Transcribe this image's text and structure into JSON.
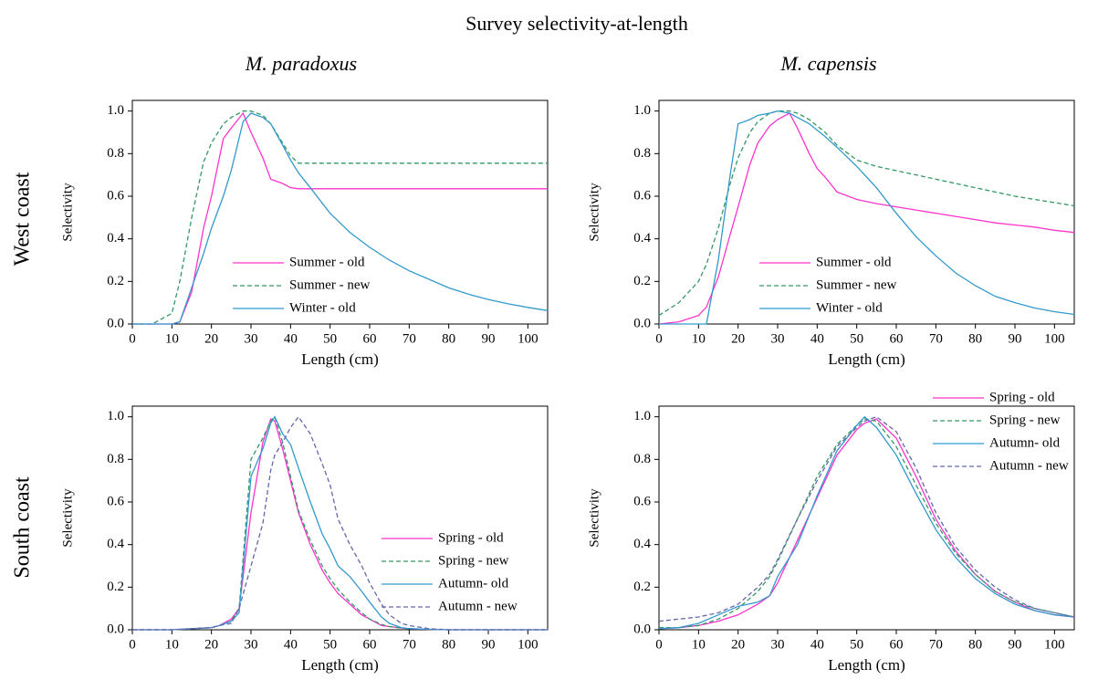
{
  "title": "Survey selectivity-at-length",
  "column_titles": [
    "M. paradoxus",
    "M. capensis"
  ],
  "row_titles": [
    "West coast",
    "South coast"
  ],
  "chart_data": [
    {
      "type": "line",
      "xlabel": "Length (cm)",
      "ylabel": "Selectivity",
      "legend": "lower center",
      "xlim": [
        0,
        105
      ],
      "ylim": [
        0,
        1.05
      ],
      "xticks": [
        0,
        10,
        20,
        30,
        40,
        50,
        60,
        70,
        80,
        90,
        100
      ],
      "yticks": [
        {
          "value": 0,
          "label": "0.0"
        },
        0.2,
        0.4,
        0.6,
        0.8,
        {
          "value": 1,
          "label": "1.0"
        }
      ],
      "x": [
        0,
        5,
        10,
        12,
        15,
        18,
        20,
        23,
        25,
        28,
        30,
        33,
        35,
        38,
        40,
        42,
        45,
        50,
        55,
        60,
        65,
        70,
        75,
        80,
        85,
        90,
        95,
        100,
        105
      ],
      "series": [
        {
          "name": "Summer - old",
          "color": "#ff33cc",
          "style": "solid",
          "values": [
            0,
            0,
            0,
            0.01,
            0.15,
            0.45,
            0.6,
            0.87,
            0.92,
            0.99,
            0.9,
            0.78,
            0.68,
            0.66,
            0.64,
            0.635,
            0.635,
            0.635,
            0.635,
            0.635,
            0.635,
            0.635,
            0.635,
            0.635,
            0.635,
            0.635,
            0.635,
            0.635,
            0.635
          ]
        },
        {
          "name": "Summer - new",
          "color": "#339966",
          "style": "dashed",
          "values": [
            0,
            0,
            0.05,
            0.2,
            0.5,
            0.76,
            0.85,
            0.94,
            0.97,
            1.0,
            1.0,
            0.98,
            0.94,
            0.85,
            0.79,
            0.755,
            0.755,
            0.755,
            0.755,
            0.755,
            0.755,
            0.755,
            0.755,
            0.755,
            0.755,
            0.755,
            0.755,
            0.755,
            0.755
          ]
        },
        {
          "name": "Winter - old",
          "color": "#3399cc",
          "style": "solid",
          "values": [
            0,
            0,
            0,
            0.01,
            0.17,
            0.33,
            0.45,
            0.6,
            0.72,
            0.95,
            0.99,
            0.97,
            0.94,
            0.84,
            0.77,
            0.71,
            0.64,
            0.52,
            0.43,
            0.36,
            0.3,
            0.25,
            0.21,
            0.17,
            0.14,
            0.115,
            0.095,
            0.078,
            0.063
          ]
        }
      ]
    },
    {
      "type": "line",
      "xlabel": "Length (cm)",
      "ylabel": "Selectivity",
      "legend": "lower center",
      "xlim": [
        0,
        105
      ],
      "ylim": [
        0,
        1.05
      ],
      "xticks": [
        0,
        10,
        20,
        30,
        40,
        50,
        60,
        70,
        80,
        90,
        100
      ],
      "yticks": [
        {
          "value": 0,
          "label": "0.0"
        },
        0.2,
        0.4,
        0.6,
        0.8,
        {
          "value": 1,
          "label": "1.0"
        }
      ],
      "x": [
        0,
        5,
        10,
        12,
        15,
        18,
        20,
        23,
        25,
        28,
        30,
        33,
        35,
        38,
        40,
        42,
        45,
        50,
        55,
        60,
        65,
        70,
        75,
        80,
        85,
        90,
        95,
        100,
        105
      ],
      "series": [
        {
          "name": "Summer - old",
          "color": "#ff33cc",
          "style": "solid",
          "values": [
            0,
            0.01,
            0.04,
            0.08,
            0.22,
            0.42,
            0.55,
            0.75,
            0.85,
            0.93,
            0.96,
            0.99,
            0.92,
            0.8,
            0.73,
            0.69,
            0.62,
            0.585,
            0.565,
            0.55,
            0.535,
            0.52,
            0.505,
            0.49,
            0.475,
            0.465,
            0.455,
            0.44,
            0.43
          ]
        },
        {
          "name": "Summer - new",
          "color": "#339966",
          "style": "dashed",
          "values": [
            0.04,
            0.1,
            0.2,
            0.28,
            0.45,
            0.66,
            0.78,
            0.9,
            0.95,
            0.99,
            1.0,
            1.0,
            0.99,
            0.96,
            0.93,
            0.9,
            0.84,
            0.77,
            0.74,
            0.72,
            0.7,
            0.68,
            0.66,
            0.64,
            0.62,
            0.6,
            0.585,
            0.57,
            0.555
          ]
        },
        {
          "name": "Winter - old",
          "color": "#3399cc",
          "style": "solid",
          "values": [
            0,
            0,
            0,
            0,
            0.3,
            0.7,
            0.94,
            0.96,
            0.98,
            0.99,
            1.0,
            0.99,
            0.97,
            0.94,
            0.91,
            0.88,
            0.83,
            0.74,
            0.64,
            0.52,
            0.41,
            0.32,
            0.24,
            0.18,
            0.13,
            0.1,
            0.075,
            0.058,
            0.045
          ]
        }
      ]
    },
    {
      "type": "line",
      "xlabel": "Length (cm)",
      "ylabel": "Selectivity",
      "legend": "center right",
      "xlim": [
        0,
        105
      ],
      "ylim": [
        0,
        1.05
      ],
      "xticks": [
        0,
        10,
        20,
        30,
        40,
        50,
        60,
        70,
        80,
        90,
        100
      ],
      "yticks": [
        {
          "value": 0,
          "label": "0.0"
        },
        0.2,
        0.4,
        0.6,
        0.8,
        {
          "value": 1,
          "label": "1.0"
        }
      ],
      "x": [
        0,
        5,
        10,
        15,
        20,
        22,
        25,
        27,
        30,
        33,
        35,
        36,
        38,
        40,
        42,
        45,
        48,
        50,
        52,
        55,
        58,
        60,
        63,
        65,
        68,
        70,
        75,
        80,
        90,
        100,
        105
      ],
      "series": [
        {
          "name": "Spring - old",
          "color": "#ff33cc",
          "style": "solid",
          "values": [
            0,
            0,
            0,
            0.005,
            0.01,
            0.02,
            0.05,
            0.1,
            0.55,
            0.88,
            0.99,
            0.98,
            0.85,
            0.7,
            0.55,
            0.4,
            0.28,
            0.22,
            0.17,
            0.12,
            0.07,
            0.05,
            0.02,
            0.015,
            0.008,
            0.005,
            0.002,
            0,
            0,
            0,
            0
          ]
        },
        {
          "name": "Spring - new",
          "color": "#339966",
          "style": "dashed",
          "values": [
            0,
            0,
            0,
            0.005,
            0.01,
            0.02,
            0.04,
            0.1,
            0.8,
            0.9,
            0.98,
            1.0,
            0.88,
            0.72,
            0.56,
            0.42,
            0.3,
            0.24,
            0.19,
            0.13,
            0.08,
            0.05,
            0.025,
            0.015,
            0.008,
            0.005,
            0.002,
            0,
            0,
            0,
            0
          ]
        },
        {
          "name": "Autumn- old",
          "color": "#3399cc",
          "style": "solid",
          "values": [
            0,
            0,
            0,
            0.005,
            0.01,
            0.02,
            0.04,
            0.08,
            0.72,
            0.85,
            0.97,
            1.0,
            0.92,
            0.87,
            0.76,
            0.6,
            0.45,
            0.38,
            0.3,
            0.25,
            0.18,
            0.13,
            0.06,
            0.03,
            0.01,
            0.005,
            0.002,
            0,
            0,
            0,
            0
          ]
        },
        {
          "name": "Autumn - new",
          "color": "#6666aa",
          "style": "dashed",
          "values": [
            0,
            0,
            0,
            0.005,
            0.01,
            0.02,
            0.03,
            0.1,
            0.3,
            0.5,
            0.75,
            0.82,
            0.88,
            0.95,
            1.0,
            0.92,
            0.78,
            0.68,
            0.52,
            0.4,
            0.3,
            0.22,
            0.12,
            0.07,
            0.03,
            0.02,
            0.005,
            0,
            0,
            0,
            0
          ]
        }
      ]
    },
    {
      "type": "line",
      "xlabel": "Length (cm)",
      "ylabel": "Selectivity",
      "legend": "upper right",
      "xlim": [
        0,
        105
      ],
      "ylim": [
        0,
        1.05
      ],
      "xticks": [
        0,
        10,
        20,
        30,
        40,
        50,
        60,
        70,
        80,
        90,
        100
      ],
      "yticks": [
        {
          "value": 0,
          "label": "0.0"
        },
        0.2,
        0.4,
        0.6,
        0.8,
        {
          "value": 1,
          "label": "1.0"
        }
      ],
      "x": [
        0,
        5,
        10,
        15,
        20,
        25,
        28,
        30,
        35,
        40,
        45,
        50,
        52,
        55,
        60,
        65,
        70,
        75,
        80,
        85,
        90,
        95,
        100,
        105
      ],
      "series": [
        {
          "name": "Spring - old",
          "color": "#ff33cc",
          "style": "solid",
          "values": [
            0.005,
            0.01,
            0.02,
            0.04,
            0.07,
            0.12,
            0.16,
            0.22,
            0.42,
            0.62,
            0.82,
            0.94,
            0.97,
            0.99,
            0.9,
            0.72,
            0.52,
            0.37,
            0.26,
            0.18,
            0.13,
            0.09,
            0.07,
            0.06
          ]
        },
        {
          "name": "Spring - new",
          "color": "#339966",
          "style": "dashed",
          "values": [
            0.01,
            0.01,
            0.02,
            0.05,
            0.1,
            0.18,
            0.25,
            0.32,
            0.52,
            0.72,
            0.87,
            0.96,
            0.99,
            0.98,
            0.86,
            0.68,
            0.5,
            0.36,
            0.26,
            0.18,
            0.13,
            0.1,
            0.08,
            0.06
          ]
        },
        {
          "name": "Autumn- old",
          "color": "#3399cc",
          "style": "solid",
          "values": [
            0.005,
            0.01,
            0.03,
            0.07,
            0.11,
            0.13,
            0.16,
            0.25,
            0.4,
            0.63,
            0.84,
            0.96,
            1.0,
            0.95,
            0.82,
            0.64,
            0.47,
            0.34,
            0.24,
            0.17,
            0.12,
            0.09,
            0.07,
            0.06
          ]
        },
        {
          "name": "Autumn - new",
          "color": "#6666aa",
          "style": "dashed",
          "values": [
            0.04,
            0.05,
            0.06,
            0.08,
            0.12,
            0.2,
            0.26,
            0.33,
            0.52,
            0.7,
            0.86,
            0.95,
            0.98,
            1.0,
            0.93,
            0.76,
            0.55,
            0.39,
            0.28,
            0.2,
            0.14,
            0.1,
            0.08,
            0.06
          ]
        }
      ]
    }
  ]
}
